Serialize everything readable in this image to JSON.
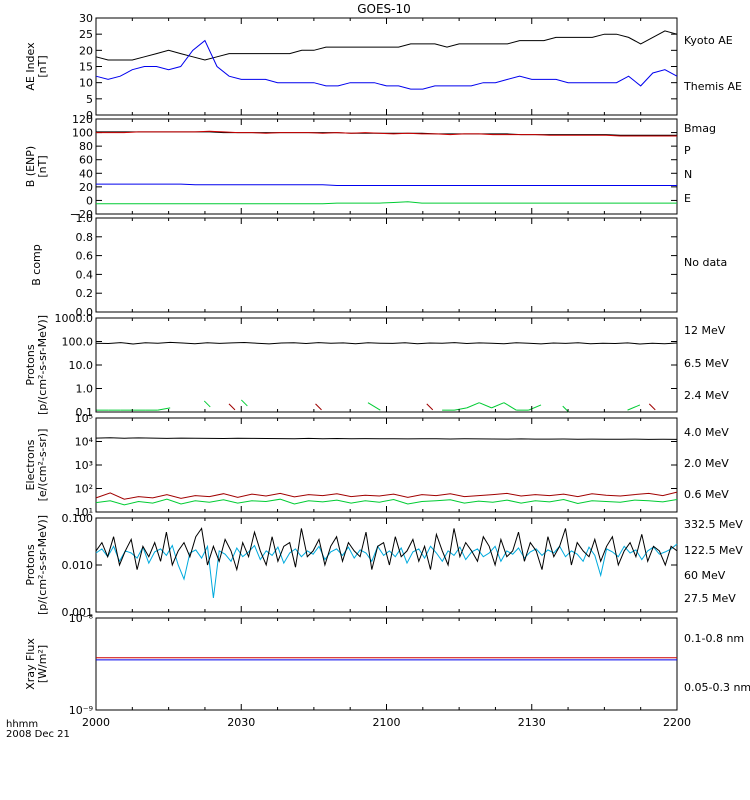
{
  "title": "GOES-10",
  "footer": {
    "line1": "hhmm",
    "line2": "2008 Dec 21"
  },
  "x_axis": {
    "ticks": [
      "2000",
      "2030",
      "2100",
      "2130",
      "2200"
    ]
  },
  "colors": {
    "black": "#000000",
    "blue": "#0000ee",
    "red": "#cc0000",
    "darkred": "#a00000",
    "green": "#00cc33",
    "cyan": "#00aadd",
    "yellow": "#ffcc00"
  },
  "chart_data": [
    {
      "type": "line",
      "ylabel": [
        "AE Index",
        "[nT]"
      ],
      "ylim": [
        0,
        30
      ],
      "yticks": [
        "0",
        "5",
        "10",
        "15",
        "20",
        "25",
        "30"
      ],
      "legend": [
        {
          "name": "Kyoto AE",
          "color": "#0000ee"
        },
        {
          "name": "Themis AE",
          "color": "#000000"
        }
      ],
      "series": [
        {
          "color": "#000000",
          "values": [
            18,
            17,
            17,
            17,
            18,
            19,
            20,
            19,
            18,
            17,
            18,
            19,
            19,
            19,
            19,
            19,
            19,
            20,
            20,
            21,
            21,
            21,
            21,
            21,
            21,
            21,
            22,
            22,
            22,
            21,
            22,
            22,
            22,
            22,
            22,
            23,
            23,
            23,
            24,
            24,
            24,
            24,
            25,
            25,
            24,
            22,
            24,
            26,
            25
          ]
        },
        {
          "color": "#0000ee",
          "values": [
            12,
            11,
            12,
            14,
            15,
            15,
            14,
            15,
            20,
            23,
            15,
            12,
            11,
            11,
            11,
            10,
            10,
            10,
            10,
            9,
            9,
            10,
            10,
            10,
            9,
            9,
            8,
            8,
            9,
            9,
            9,
            9,
            10,
            10,
            11,
            12,
            11,
            11,
            11,
            10,
            10,
            10,
            10,
            10,
            12,
            9,
            13,
            14,
            12
          ]
        }
      ]
    },
    {
      "type": "line",
      "ylabel": [
        "B (ENP)",
        "[nT]"
      ],
      "ylim": [
        -20,
        120
      ],
      "yticks": [
        "−20",
        "0",
        "20",
        "40",
        "60",
        "80",
        "100",
        "120"
      ],
      "legend": [
        {
          "name": "Bmag",
          "color": "#000000"
        },
        {
          "name": "P",
          "color": "#cc0000"
        },
        {
          "name": "N",
          "color": "#00cc33"
        },
        {
          "name": "E",
          "color": "#0000ee"
        }
      ],
      "series": [
        {
          "color": "#000000",
          "values": [
            101,
            101,
            101,
            101,
            101,
            101,
            101,
            101,
            101,
            100,
            100,
            100,
            100,
            100,
            100,
            100,
            100,
            100,
            99,
            99,
            99,
            99,
            99,
            99,
            98,
            98,
            98,
            98,
            98,
            98,
            97,
            97,
            97,
            97,
            97,
            97,
            97,
            96,
            96,
            96,
            96,
            96
          ]
        },
        {
          "color": "#cc0000",
          "values": [
            100,
            100,
            100,
            101,
            101,
            101,
            101,
            101,
            102,
            101,
            100,
            100,
            99,
            100,
            100,
            100,
            99,
            100,
            99,
            100,
            99,
            98,
            99,
            98,
            98,
            97,
            98,
            98,
            97,
            97,
            97,
            97,
            96,
            96,
            96,
            96,
            96,
            95,
            95,
            95,
            95,
            95
          ]
        },
        {
          "color": "#0000ee",
          "values": [
            24,
            24,
            24,
            24,
            24,
            24,
            24,
            23,
            23,
            23,
            23,
            23,
            23,
            23,
            23,
            23,
            23,
            22,
            22,
            22,
            22,
            22,
            22,
            22,
            22,
            22,
            22,
            22,
            22,
            22,
            22,
            22,
            22,
            22,
            22,
            22,
            22,
            22,
            22,
            22,
            22,
            22
          ]
        },
        {
          "color": "#00cc33",
          "values": [
            -5,
            -5,
            -5,
            -5,
            -5,
            -5,
            -5,
            -5,
            -5,
            -5,
            -5,
            -5,
            -5,
            -5,
            -5,
            -5,
            -5,
            -4,
            -4,
            -4,
            -4,
            -3,
            -2,
            -4,
            -4,
            -4,
            -4,
            -4,
            -4,
            -4,
            -4,
            -4,
            -4,
            -4,
            -4,
            -4,
            -4,
            -4,
            -4,
            -4,
            -4,
            -4
          ]
        }
      ]
    },
    {
      "type": "line",
      "ylabel": [
        "B comp"
      ],
      "ylim": [
        0,
        1
      ],
      "yticks": [
        "0.0",
        "0.2",
        "0.4",
        "0.6",
        "0.8",
        "1.0"
      ],
      "legend": [
        {
          "name": "No data",
          "color": "#000000"
        }
      ],
      "series": []
    },
    {
      "type": "line",
      "ylabel": [
        "Protons",
        "[p/(cm²-s-sr-MeV)]"
      ],
      "log": true,
      "ylim": [
        0.1,
        1000
      ],
      "yticks": [
        "0.1",
        "1.0",
        "10.0",
        "100.0",
        "1000.0"
      ],
      "legend": [
        {
          "name": "12 MeV",
          "color": "#a00000"
        },
        {
          "name": "6.5 MeV",
          "color": "#00cc33"
        },
        {
          "name": "2.4 MeV",
          "color": "#000000"
        }
      ],
      "series": [
        {
          "color": "#000000",
          "values": [
            85,
            82,
            90,
            78,
            88,
            84,
            92,
            86,
            80,
            89,
            83,
            87,
            91,
            85,
            79,
            86,
            88,
            82,
            90,
            84,
            87,
            81,
            89,
            85,
            83,
            88,
            80,
            86,
            84,
            90,
            82,
            87,
            85,
            81,
            88,
            84,
            79,
            86,
            83,
            89,
            80,
            85,
            82,
            87,
            78,
            84,
            81,
            86
          ]
        },
        {
          "color": "#00cc33",
          "values": [
            0.12,
            0.12,
            0.12,
            0.12,
            0.12,
            0.12,
            0.15,
            null,
            null,
            0.2,
            null,
            null,
            0.22,
            null,
            null,
            null,
            null,
            null,
            null,
            null,
            null,
            null,
            0.25,
            0.12,
            null,
            null,
            null,
            null,
            0.12,
            0.12,
            0.15,
            0.25,
            0.15,
            0.25,
            0.12,
            0.12,
            0.2,
            null,
            0.12,
            null,
            null,
            null,
            null,
            0.12,
            0.2,
            null,
            null,
            null
          ]
        },
        {
          "color": "#a00000",
          "values": [
            null,
            null,
            null,
            null,
            null,
            null,
            null,
            null,
            null,
            null,
            null,
            0.15,
            null,
            null,
            null,
            null,
            null,
            null,
            0.15,
            null,
            null,
            null,
            null,
            null,
            null,
            null,
            null,
            0.15,
            null,
            null,
            null,
            null,
            null,
            null,
            null,
            null,
            null,
            null,
            null,
            null,
            null,
            null,
            null,
            null,
            null,
            0.15,
            null,
            null
          ]
        }
      ]
    },
    {
      "type": "line",
      "ylabel": [
        "Electrons",
        "[e/(cm²-s-sr)]"
      ],
      "log": true,
      "ylim": [
        10,
        100000
      ],
      "yticks": [
        "10¹",
        "10²",
        "10³",
        "10⁴",
        "10⁵"
      ],
      "legend": [
        {
          "name": "4.0 MeV",
          "color": "#a00000"
        },
        {
          "name": "2.0 MeV",
          "color": "#00cc33"
        },
        {
          "name": "0.6 MeV",
          "color": "#000000"
        }
      ],
      "series": [
        {
          "color": "#000000",
          "values": [
            14000,
            14500,
            13800,
            14200,
            14000,
            13500,
            13900,
            13800,
            13600,
            13400,
            13800,
            13500,
            13400,
            13300,
            13200,
            13500,
            13100,
            13400,
            13000,
            13300,
            13200,
            13100,
            12900,
            13100,
            13000,
            12800,
            13000,
            12900,
            12800,
            12700,
            12900,
            12700,
            12600,
            12800,
            12500,
            12600,
            12500,
            12400,
            12600,
            12300,
            12400,
            12300
          ]
        },
        {
          "color": "#a00000",
          "values": [
            40,
            65,
            35,
            45,
            40,
            55,
            38,
            50,
            45,
            60,
            42,
            58,
            48,
            62,
            44,
            55,
            50,
            60,
            45,
            52,
            48,
            58,
            42,
            55,
            50,
            60,
            45,
            50,
            55,
            62,
            48,
            55,
            50,
            58,
            45,
            60,
            52,
            48,
            55,
            62,
            50,
            70
          ]
        },
        {
          "color": "#00cc33",
          "values": [
            25,
            30,
            20,
            28,
            24,
            35,
            22,
            30,
            26,
            33,
            24,
            30,
            28,
            35,
            22,
            30,
            27,
            32,
            24,
            30,
            26,
            34,
            22,
            28,
            30,
            33,
            24,
            29,
            26,
            32,
            24,
            30,
            27,
            34,
            23,
            30,
            28,
            26,
            32,
            30,
            27,
            34
          ]
        }
      ]
    },
    {
      "type": "line",
      "ylabel": [
        "Protons",
        "[p/(cm²-s-sr-MeV)]"
      ],
      "log": true,
      "ylim": [
        0.001,
        0.1
      ],
      "yticks": [
        "0.001",
        "0.010",
        "0.100"
      ],
      "legend": [
        {
          "name": "332.5 MeV",
          "color": "#a00000"
        },
        {
          "name": "122.5 MeV",
          "color": "#ffcc00"
        },
        {
          "name": "60 MeV",
          "color": "#00aadd"
        },
        {
          "name": "27.5 MeV",
          "color": "#000000"
        }
      ],
      "series": [
        {
          "color": "#00aadd",
          "values": [
            0.018,
            0.022,
            0.015,
            0.025,
            0.012,
            0.02,
            0.018,
            0.014,
            0.024,
            0.011,
            0.019,
            0.022,
            0.016,
            0.026,
            0.01,
            0.005,
            0.018,
            0.021,
            0.014,
            0.025,
            0.002,
            0.02,
            0.017,
            0.012,
            0.023,
            0.015,
            0.019,
            0.026,
            0.013,
            0.02,
            0.016,
            0.024,
            0.011,
            0.018,
            0.022,
            0.015,
            0.02,
            0.017,
            0.025,
            0.013,
            0.019,
            0.022,
            0.016,
            0.024,
            0.014,
            0.021,
            0.018,
            0.012,
            0.025,
            0.016,
            0.02,
            0.015,
            0.023,
            0.011,
            0.019,
            0.022,
            0.014,
            0.025,
            0.018,
            0.012,
            0.02,
            0.016,
            0.024,
            0.013,
            0.019,
            0.022,
            0.015,
            0.018,
            0.025,
            0.012,
            0.02,
            0.017,
            0.023,
            0.014,
            0.019,
            0.022,
            0.016,
            0.021,
            0.018,
            0.025,
            0.015,
            0.02,
            0.017,
            0.012,
            0.024,
            0.016,
            0.006,
            0.022,
            0.019,
            0.015,
            0.025,
            0.018,
            0.021,
            0.013,
            0.02,
            0.024,
            0.017,
            0.019,
            0.022,
            0.028
          ]
        },
        {
          "color": "#000000",
          "values": [
            0.02,
            0.03,
            0.015,
            0.04,
            0.01,
            0.02,
            0.035,
            0.008,
            0.025,
            0.015,
            0.03,
            0.012,
            0.05,
            0.01,
            0.02,
            0.03,
            0.015,
            0.04,
            0.06,
            0.01,
            0.025,
            0.012,
            0.035,
            0.02,
            0.008,
            0.03,
            0.015,
            0.05,
            0.02,
            0.01,
            0.04,
            0.012,
            0.025,
            0.03,
            0.009,
            0.06,
            0.015,
            0.02,
            0.035,
            0.01,
            0.025,
            0.04,
            0.012,
            0.03,
            0.02,
            0.015,
            0.05,
            0.008,
            0.025,
            0.03,
            0.01,
            0.04,
            0.015,
            0.02,
            0.035,
            0.012,
            0.025,
            0.008,
            0.045,
            0.02,
            0.01,
            0.06,
            0.015,
            0.03,
            0.02,
            0.012,
            0.04,
            0.025,
            0.01,
            0.035,
            0.015,
            0.02,
            0.05,
            0.012,
            0.03,
            0.02,
            0.008,
            0.04,
            0.015,
            0.025,
            0.06,
            0.01,
            0.03,
            0.02,
            0.015,
            0.035,
            0.012,
            0.025,
            0.04,
            0.01,
            0.02,
            0.03,
            0.015,
            0.045,
            0.012,
            0.025,
            0.02,
            0.01,
            0.025,
            0.02
          ]
        }
      ]
    },
    {
      "type": "line",
      "ylabel": [
        "Xray  Flux",
        "[W/m²]"
      ],
      "log": true,
      "ylim": [
        1e-09,
        1e-08
      ],
      "yticks": [
        "10⁻⁹",
        "10⁻⁸"
      ],
      "legend": [
        {
          "name": "0.1-0.8 nm",
          "color": "#cc0000"
        },
        {
          "name": "0.05-0.3 nm",
          "color": "#0000ee"
        }
      ],
      "series": [
        {
          "color": "#cc0000",
          "values": [
            3.7e-09,
            3.7e-09,
            3.7e-09,
            3.7e-09,
            3.7e-09,
            3.7e-09,
            3.7e-09,
            3.7e-09,
            3.7e-09,
            3.7e-09,
            3.7e-09,
            3.7e-09
          ]
        },
        {
          "color": "#0000ee",
          "values": [
            3.5e-09,
            3.5e-09,
            3.5e-09,
            3.5e-09,
            3.5e-09,
            3.5e-09,
            3.5e-09,
            3.5e-09,
            3.5e-09,
            3.5e-09,
            3.5e-09,
            3.5e-09
          ]
        }
      ]
    }
  ]
}
